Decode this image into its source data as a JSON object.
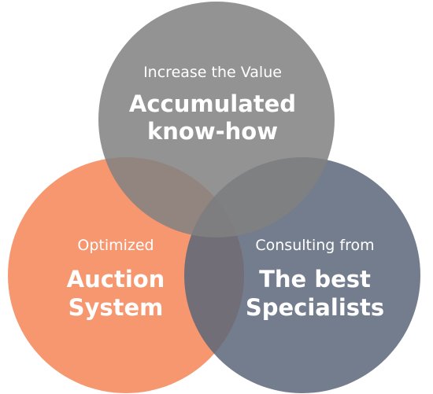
{
  "circles": [
    {
      "id": "top",
      "subtitle": "Increase the Value",
      "headline_lines": [
        "Accumulated",
        "know-how"
      ],
      "color": "#808080"
    },
    {
      "id": "left",
      "subtitle": "Optimized",
      "headline_lines": [
        "Auction",
        "System"
      ],
      "color": "#F5895C"
    },
    {
      "id": "right",
      "subtitle": "Consulting from",
      "headline_lines": [
        "The best",
        "Specialists"
      ],
      "color": "#5B6679"
    }
  ]
}
